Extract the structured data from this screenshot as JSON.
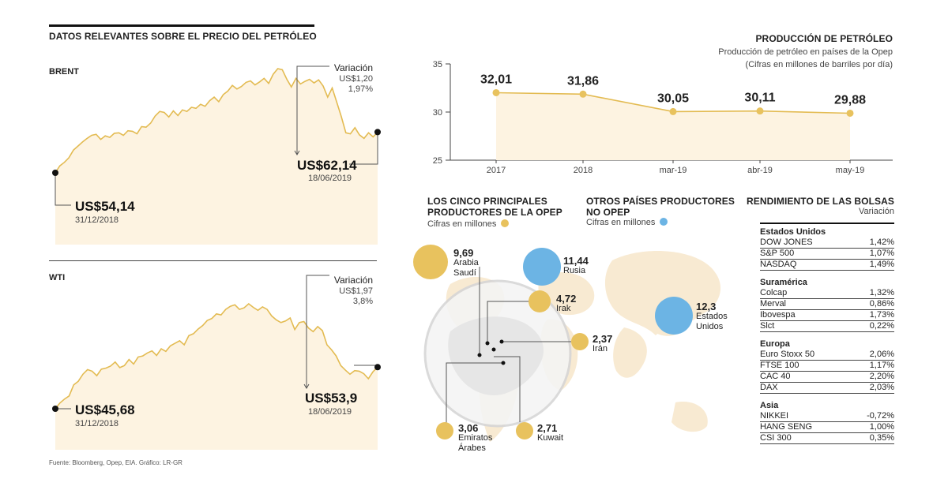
{
  "main_title": "DATOS RELEVANTES SOBRE EL PRECIO DEL PETRÓLEO",
  "source": "Fuente: Bloomberg, Opep, EIA.  Gráfico: LR-GR",
  "brent": {
    "label": "BRENT",
    "variacion_label": "Variación",
    "variacion_abs": "US$1,20",
    "variacion_pct": "1,97%",
    "end_value": "US$62,14",
    "end_date": "18/06/2019",
    "start_value": "US$54,14",
    "start_date": "31/12/2018"
  },
  "wti": {
    "label": "WTI",
    "variacion_label": "Variación",
    "variacion_abs": "US$1,97",
    "variacion_pct": "3,8%",
    "end_value": "US$53,9",
    "end_date": "18/06/2019",
    "start_value": "US$45,68",
    "start_date": "31/12/2018"
  },
  "produccion": {
    "title": "PRODUCCIÓN DE PETRÓLEO",
    "subtitle1": "Producción de petróleo en países de la Opep",
    "subtitle2": "(Cifras en millones de barriles por día)"
  },
  "opep": {
    "title1": "LOS CINCO PRINCIPALES",
    "title2": "PRODUCTORES DE LA OPEP",
    "unit": "Cifras en millones",
    "countries": [
      {
        "value": "9,69",
        "name1": "Arabia",
        "name2": "Saudí"
      },
      {
        "value": "4,72",
        "name1": "Irak",
        "name2": ""
      },
      {
        "value": "2,37",
        "name1": "Irán",
        "name2": ""
      },
      {
        "value": "3,06",
        "name1": "Emiratos",
        "name2": "Árabes"
      },
      {
        "value": "2,71",
        "name1": "Kuwait",
        "name2": ""
      }
    ]
  },
  "no_opep": {
    "title1": "OTROS PAÍSES PRODUCTORES",
    "title2": "NO OPEP",
    "unit": "Cifras en millones",
    "countries": [
      {
        "value": "11,44",
        "name1": "Rusia",
        "name2": ""
      },
      {
        "value": "12,3",
        "name1": "Estados",
        "name2": "Unidos"
      }
    ]
  },
  "bolsas": {
    "title": "RENDIMIENTO DE LAS BOLSAS",
    "subtitle": "Variación",
    "groups": [
      {
        "name": "Estados Unidos",
        "rows": [
          {
            "index": "DOW JONES",
            "value": "1,42%"
          },
          {
            "index": "S&P 500",
            "value": "1,07%"
          },
          {
            "index": "NASDAQ",
            "value": "1,49%"
          }
        ]
      },
      {
        "name": "Suramérica",
        "rows": [
          {
            "index": "Colcap",
            "value": "1,32%"
          },
          {
            "index": "Merval",
            "value": "0,86%"
          },
          {
            "index": "Ibovespa",
            "value": "1,73%"
          },
          {
            "index": "Slct",
            "value": "0,22%"
          }
        ]
      },
      {
        "name": "Europa",
        "rows": [
          {
            "index": "Euro Stoxx 50",
            "value": "2,06%"
          },
          {
            "index": "FTSE 100",
            "value": "1,17%"
          },
          {
            "index": "CAC 40",
            "value": "2,20%"
          },
          {
            "index": "DAX",
            "value": "2,03%"
          }
        ]
      },
      {
        "name": "Asia",
        "rows": [
          {
            "index": "NIKKEI",
            "value": "-0,72%"
          },
          {
            "index": "HANG SENG",
            "value": "1,00%"
          },
          {
            "index": "CSI 300",
            "value": "0,35%"
          }
        ]
      }
    ]
  },
  "colors": {
    "gold": "#e8c25e",
    "gold_line": "#e3bb52",
    "fill": "#fdf3e1",
    "blue": "#6cb4e4",
    "map": "#f8ead2"
  },
  "chart_data": [
    {
      "type": "area",
      "title": "BRENT",
      "x": [
        "31/12/2018",
        "18/06/2019"
      ],
      "start_value": 54.14,
      "end_value": 62.14,
      "shape": [
        54.14,
        55.5,
        56.2,
        57.1,
        58.6,
        59.4,
        60.2,
        60.9,
        61.5,
        61.7,
        60.7,
        61.4,
        61.1,
        61.9,
        62.0,
        61.5,
        62.4,
        62.3,
        61.8,
        63.2,
        63.1,
        63.9,
        65.3,
        66.2,
        66.0,
        65.1,
        66.3,
        65.4,
        66.5,
        66.2,
        67.0,
        66.8,
        67.6,
        67.2,
        68.3,
        69.0,
        68.1,
        69.5,
        70.2,
        71.3,
        70.6,
        71.1,
        71.9,
        72.2,
        71.4,
        72.0,
        72.7,
        71.7,
        73.5,
        74.6,
        74.4,
        72.5,
        71.0,
        72.7,
        71.6,
        72.1,
        72.5,
        71.8,
        72.4,
        71.2,
        69.0,
        70.8,
        68.0,
        65.2,
        62.0,
        61.8,
        63.0,
        61.6,
        60.9,
        62.0,
        61.2,
        62.14
      ]
    },
    {
      "type": "area",
      "title": "WTI",
      "x": [
        "31/12/2018",
        "18/06/2019"
      ],
      "start_value": 45.68,
      "end_value": 53.9,
      "shape": [
        45.68,
        46.8,
        47.6,
        48.2,
        50.4,
        51.1,
        52.5,
        53.4,
        53.1,
        52.2,
        53.5,
        53.7,
        54.1,
        54.9,
        53.8,
        54.2,
        55.4,
        54.5,
        55.9,
        56.1,
        56.7,
        57.1,
        56.2,
        57.5,
        57.0,
        58.1,
        58.6,
        59.1,
        58.3,
        60.1,
        60.5,
        61.4,
        62.1,
        63.1,
        63.5,
        64.4,
        64.2,
        65.3,
        65.9,
        66.2,
        65.3,
        65.6,
        66.4,
        65.7,
        65.1,
        65.8,
        65.3,
        64.0,
        63.2,
        62.7,
        63.0,
        63.6,
        61.3,
        62.7,
        62.9,
        61.6,
        60.9,
        61.9,
        61.1,
        58.3,
        57.3,
        56.1,
        54.2,
        53.3,
        52.5,
        53.2,
        53.1,
        52.6,
        51.6,
        53.0,
        53.9
      ]
    },
    {
      "type": "line",
      "title": "PRODUCCIÓN DE PETRÓLEO",
      "categories": [
        "2017",
        "2018",
        "mar-19",
        "abr-19",
        "may-19"
      ],
      "values": [
        32.01,
        31.86,
        30.05,
        30.11,
        29.88
      ],
      "labels": [
        "32,01",
        "31,86",
        "30,05",
        "30,11",
        "29,88"
      ],
      "yticks": [
        25,
        30,
        35
      ],
      "ylim": [
        25,
        35
      ]
    }
  ]
}
